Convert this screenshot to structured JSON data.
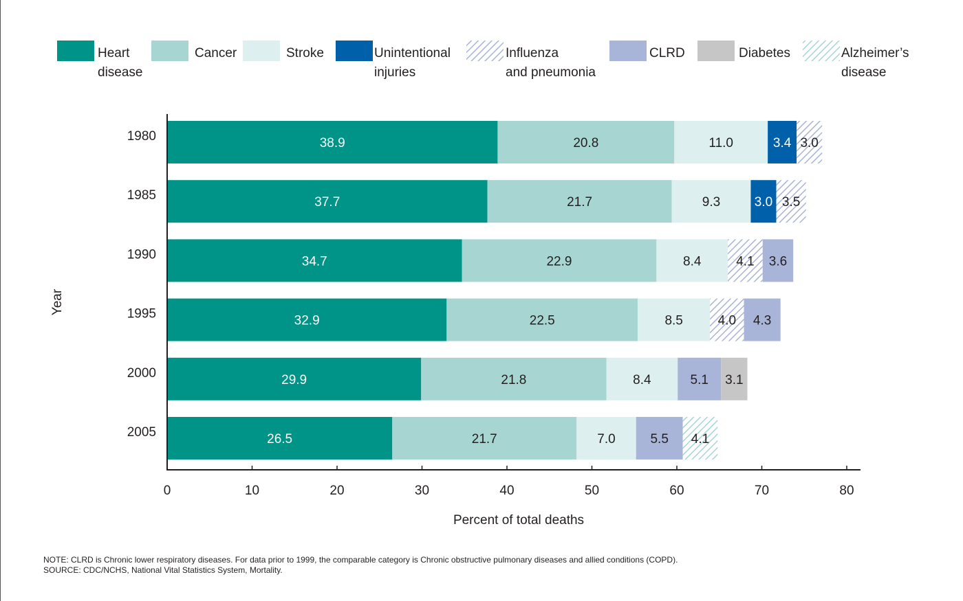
{
  "chart_data": {
    "type": "bar",
    "orientation": "horizontal",
    "stacked": true,
    "title": "",
    "xlabel": "Percent of total deaths",
    "ylabel": "Year",
    "xlim": [
      0,
      80
    ],
    "xticks": [
      0,
      10,
      20,
      30,
      40,
      50,
      60,
      70,
      80
    ],
    "grid": false,
    "legend_position": "top",
    "categories": [
      "1980",
      "1985",
      "1990",
      "1995",
      "2000",
      "2005"
    ],
    "series": [
      {
        "name": "Heart disease",
        "legend_lines": [
          "Heart",
          "disease"
        ],
        "color": "#009488",
        "pattern": "solid",
        "label_color": "#ffffff",
        "values": [
          38.9,
          37.7,
          34.7,
          32.9,
          29.9,
          26.5
        ],
        "labels": [
          "38.9",
          "37.7",
          "34.7",
          "32.9",
          "29.9",
          "26.5"
        ]
      },
      {
        "name": "Cancer",
        "legend_lines": [
          "Cancer"
        ],
        "color": "#a7d5d2",
        "pattern": "solid",
        "label_color": "#231f20",
        "values": [
          20.8,
          21.7,
          22.9,
          22.5,
          21.8,
          21.7
        ],
        "labels": [
          "20.8",
          "21.7",
          "22.9",
          "22.5",
          "21.8",
          "21.7"
        ]
      },
      {
        "name": "Stroke",
        "legend_lines": [
          "Stroke"
        ],
        "color": "#ddefee",
        "pattern": "solid",
        "label_color": "#231f20",
        "values": [
          11.0,
          9.3,
          8.4,
          8.5,
          8.4,
          7.0
        ],
        "labels": [
          "11.0",
          "9.3",
          "8.4",
          "8.5",
          "8.4",
          "7.0"
        ]
      },
      {
        "name": "Unintentional injuries",
        "legend_lines": [
          "Unintentional",
          "injuries"
        ],
        "color": "#0060a9",
        "pattern": "solid",
        "label_color": "#ffffff",
        "values": [
          3.4,
          3.0,
          null,
          null,
          null,
          null
        ],
        "labels": [
          "3.4",
          "3.0",
          "",
          "",
          "",
          ""
        ]
      },
      {
        "name": "Influenza and pneumonia",
        "legend_lines": [
          "Influenza",
          "and pneumonia"
        ],
        "color": "#a8b4d8",
        "pattern": "hatch",
        "label_color": "#231f20",
        "values": [
          3.0,
          3.5,
          4.1,
          4.0,
          null,
          null
        ],
        "labels": [
          "3.0",
          "3.5",
          "4.1",
          "4.0",
          "",
          ""
        ]
      },
      {
        "name": "CLRD",
        "legend_lines": [
          "CLRD"
        ],
        "color": "#a8b4d8",
        "pattern": "solid",
        "label_color": "#231f20",
        "values": [
          null,
          null,
          3.6,
          4.3,
          5.1,
          5.5
        ],
        "labels": [
          "",
          "",
          "3.6",
          "4.3",
          "5.1",
          "5.5"
        ]
      },
      {
        "name": "Diabetes",
        "legend_lines": [
          "Diabetes"
        ],
        "color": "#c6c6c6",
        "pattern": "solid",
        "label_color": "#231f20",
        "values": [
          null,
          null,
          null,
          null,
          3.1,
          null
        ],
        "labels": [
          "",
          "",
          "",
          "",
          "3.1",
          ""
        ]
      },
      {
        "name": "Alzheimer's disease",
        "legend_lines": [
          "Alzheimer’s",
          "disease"
        ],
        "color": "#a7d5d2",
        "pattern": "hatch",
        "label_color": "#231f20",
        "values": [
          null,
          null,
          null,
          null,
          null,
          4.1
        ],
        "labels": [
          "",
          "",
          "",
          "",
          "",
          "4.1"
        ]
      }
    ]
  },
  "notes": {
    "note": "NOTE: CLRD is Chronic lower respiratory diseases.  For data prior to 1999, the comparable category is Chronic obstructive pulmonary diseases and allied conditions (COPD).",
    "source": "SOURCE: CDC/NCHS, National Vital Statistics System, Mortality."
  }
}
